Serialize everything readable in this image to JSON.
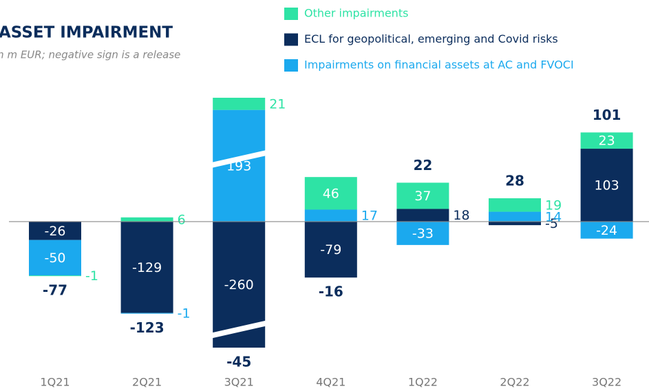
{
  "chart_data": {
    "type": "stacked_bar",
    "title": "ASSET IMPAIRMENT",
    "subtitle": "in m EUR; negative sign is a release",
    "categories": [
      "1Q21",
      "2Q21",
      "3Q21",
      "4Q21",
      "1Q22",
      "2Q22",
      "3Q22"
    ],
    "series": [
      {
        "name": "Other impairments",
        "color": "#2ee3a5",
        "values": [
          -1,
          6,
          21,
          46,
          37,
          19,
          23
        ]
      },
      {
        "name": "ECL for geopolitical, emerging and Covid risks",
        "color": "#0b2d5c",
        "values": [
          -26,
          -129,
          -260,
          -79,
          18,
          -5,
          103
        ]
      },
      {
        "name": "Impairments on financial assets at AC and FVOCI",
        "color": "#1ba9ee",
        "values": [
          -50,
          -1,
          193,
          17,
          -33,
          14,
          -24
        ]
      }
    ],
    "totals": [
      -77,
      -123,
      -45,
      -16,
      22,
      28,
      101
    ],
    "ylim": [
      -178,
      175
    ],
    "axis_break": true
  }
}
